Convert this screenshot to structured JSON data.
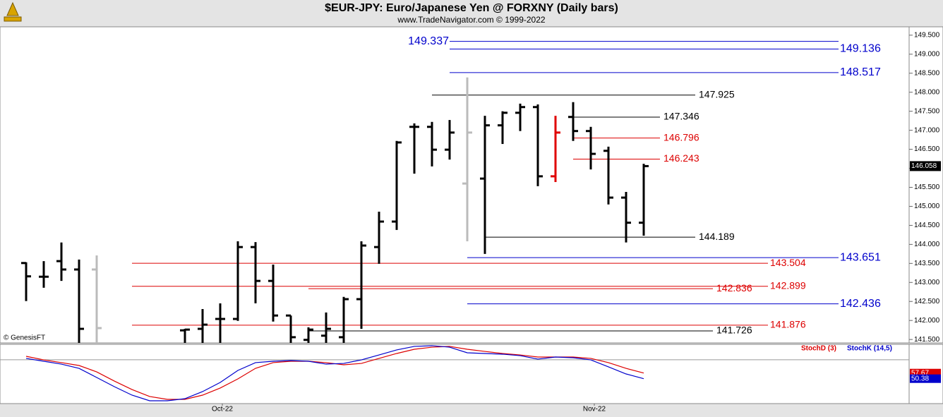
{
  "chart_data": [
    {
      "type": "ohlc",
      "title": "$EUR-JPY:  Euro/Japanese Yen @ FORXNY  (Daily bars)",
      "subtitle": "www.TradeNavigator.com © 1999-2022",
      "watermark": "© GenesisFT",
      "x": [
        0,
        1,
        2,
        3,
        4,
        9,
        10,
        11,
        12,
        13,
        14,
        15,
        16,
        17,
        18,
        19,
        20,
        21,
        22,
        23,
        24,
        25,
        26,
        27,
        28,
        29,
        30,
        31,
        32,
        33,
        34,
        35
      ],
      "open": [
        143.51,
        143.15,
        143.56,
        143.34,
        143.34,
        141.74,
        141.78,
        142.04,
        142.04,
        143.93,
        143.04,
        142.13,
        141.49,
        141.6,
        141.56,
        142.56,
        143.93,
        144.6,
        147.09,
        147.09,
        146.49,
        145.6,
        145.73,
        147.13,
        147.46,
        147.61,
        145.79,
        147.35,
        146.98,
        146.46,
        145.23,
        144.57
      ],
      "high": [
        143.53,
        143.56,
        144.05,
        143.6,
        143.71,
        141.78,
        142.3,
        142.45,
        144.08,
        144.06,
        143.47,
        142.13,
        141.82,
        142.21,
        142.62,
        144.08,
        144.86,
        146.72,
        147.18,
        147.22,
        147.27,
        148.39,
        147.38,
        147.5,
        147.7,
        147.68,
        147.38,
        147.74,
        147.09,
        146.57,
        145.38,
        146.12
      ],
      "low": [
        142.51,
        142.86,
        143.04,
        141.2,
        141.2,
        141.2,
        141.2,
        141.3,
        141.99,
        142.45,
        141.97,
        141.3,
        141.3,
        141.3,
        141.4,
        141.78,
        143.49,
        144.38,
        145.86,
        146.05,
        146.23,
        144.08,
        143.75,
        146.64,
        146.98,
        145.53,
        145.64,
        146.72,
        145.97,
        145.05,
        144.05,
        144.23
      ],
      "close": [
        143.16,
        143.15,
        143.34,
        141.78,
        141.8,
        141.76,
        141.89,
        142.04,
        143.93,
        143.04,
        142.13,
        141.56,
        141.76,
        141.78,
        142.56,
        143.97,
        144.6,
        146.68,
        147.09,
        146.49,
        146.94,
        146.94,
        147.13,
        147.46,
        147.61,
        145.79,
        146.94,
        146.98,
        146.38,
        145.23,
        144.57,
        146.058
      ],
      "bar_colors": [
        "#000",
        "#000",
        "#000",
        "#000",
        "#bbb",
        "#000",
        "#000",
        "#000",
        "#000",
        "#000",
        "#000",
        "#000",
        "#000",
        "#000",
        "#000",
        "#000",
        "#000",
        "#000",
        "#000",
        "#000",
        "#000",
        "#bbb",
        "#000",
        "#000",
        "#000",
        "#000",
        "#e00000",
        "#000",
        "#000",
        "#000",
        "#000",
        "#000"
      ],
      "xlim": [
        -1.48,
        50.04
      ],
      "ylim": [
        141.41,
        149.72
      ],
      "yticks": [
        {
          "value": 141.5,
          "label": "141.500"
        },
        {
          "value": 142,
          "label": "142.000"
        },
        {
          "value": 142.5,
          "label": "142.500"
        },
        {
          "value": 143,
          "label": "143.000"
        },
        {
          "value": 143.5,
          "label": "143.500"
        },
        {
          "value": 144,
          "label": "144.000"
        },
        {
          "value": 144.5,
          "label": "144.500"
        },
        {
          "value": 145,
          "label": "145.000"
        },
        {
          "value": 145.5,
          "label": "145.500"
        },
        {
          "value": 146,
          "label": "146.000"
        },
        {
          "value": 146.5,
          "label": "146.500"
        },
        {
          "value": 147,
          "label": "147.000"
        },
        {
          "value": 147.5,
          "label": "147.500"
        },
        {
          "value": 148,
          "label": "148.000"
        },
        {
          "value": 148.5,
          "label": "148.500"
        },
        {
          "value": 149,
          "label": "149.000"
        },
        {
          "value": 149.5,
          "label": "149.500"
        }
      ],
      "levels": [
        {
          "value": 149.337,
          "color": "#0000cc",
          "start": 24
        },
        {
          "value": 149.136,
          "color": "#0000cc",
          "start": 24
        },
        {
          "value": 148.517,
          "color": "#0000cc",
          "start": 24
        },
        {
          "value": 147.925,
          "color": "#000000",
          "start": 23
        },
        {
          "value": 147.346,
          "color": "#000000",
          "start": 31
        },
        {
          "value": 146.796,
          "color": "#dd0000",
          "start": 31
        },
        {
          "value": 146.243,
          "color": "#dd0000",
          "start": 31
        },
        {
          "value": 144.189,
          "color": "#000000",
          "start": 26
        },
        {
          "value": 143.651,
          "color": "#0000cc",
          "start": 25
        },
        {
          "value": 143.504,
          "color": "#dd0000",
          "start": 6
        },
        {
          "value": 142.899,
          "color": "#dd0000",
          "start": 6
        },
        {
          "value": 142.836,
          "color": "#dd0000",
          "start": 16
        },
        {
          "value": 142.436,
          "color": "#0000cc",
          "start": 25
        },
        {
          "value": 141.876,
          "color": "#dd0000",
          "start": 6
        },
        {
          "value": 141.726,
          "color": "#000000",
          "start": 16
        }
      ]
    },
    {
      "type": "line",
      "x": [
        0,
        1,
        2,
        3,
        4,
        5,
        6,
        7,
        8,
        9,
        10,
        11,
        12,
        13,
        14,
        15,
        16,
        17,
        18,
        19,
        20,
        21,
        22,
        23,
        24,
        25,
        26,
        27,
        28,
        29,
        30,
        31,
        32,
        33,
        34,
        35
      ],
      "series": [
        {
          "name": "StochD (3)",
          "color": "#dd0000",
          "values": [
            79.4,
            74.8,
            71.2,
            67.5,
            59.2,
            47.3,
            36.3,
            27.2,
            23.5,
            23.5,
            29.0,
            38.2,
            50.1,
            63.8,
            71.2,
            73.0,
            73.0,
            71.2,
            68.4,
            70.2,
            76.7,
            83.1,
            88.6,
            91.3,
            92.3,
            88.6,
            85.8,
            83.1,
            81.2,
            78.5,
            78.5,
            78.5,
            76.7,
            71.2,
            63.8,
            57.67
          ]
        },
        {
          "name": "StochK (14,5)",
          "color": "#0000cc",
          "values": [
            76.7,
            73.0,
            69.3,
            63.8,
            51.9,
            40.0,
            29.0,
            21.7,
            21.7,
            24.4,
            33.6,
            45.5,
            61.1,
            71.2,
            73.0,
            73.9,
            73.0,
            69.3,
            70.2,
            74.8,
            81.2,
            87.7,
            92.3,
            93.2,
            91.3,
            84.0,
            83.1,
            82.2,
            80.3,
            75.8,
            78.5,
            77.6,
            74.8,
            65.7,
            56.5,
            50.38
          ]
        }
      ],
      "reference_lines": [
        75
      ],
      "xlim": [
        -1.48,
        50.04
      ],
      "ylim": [
        18,
        95
      ],
      "xticks": [
        {
          "value": 11.12,
          "label": "Oct-22"
        },
        {
          "value": 32.2,
          "label": "Nov-22"
        }
      ]
    }
  ]
}
